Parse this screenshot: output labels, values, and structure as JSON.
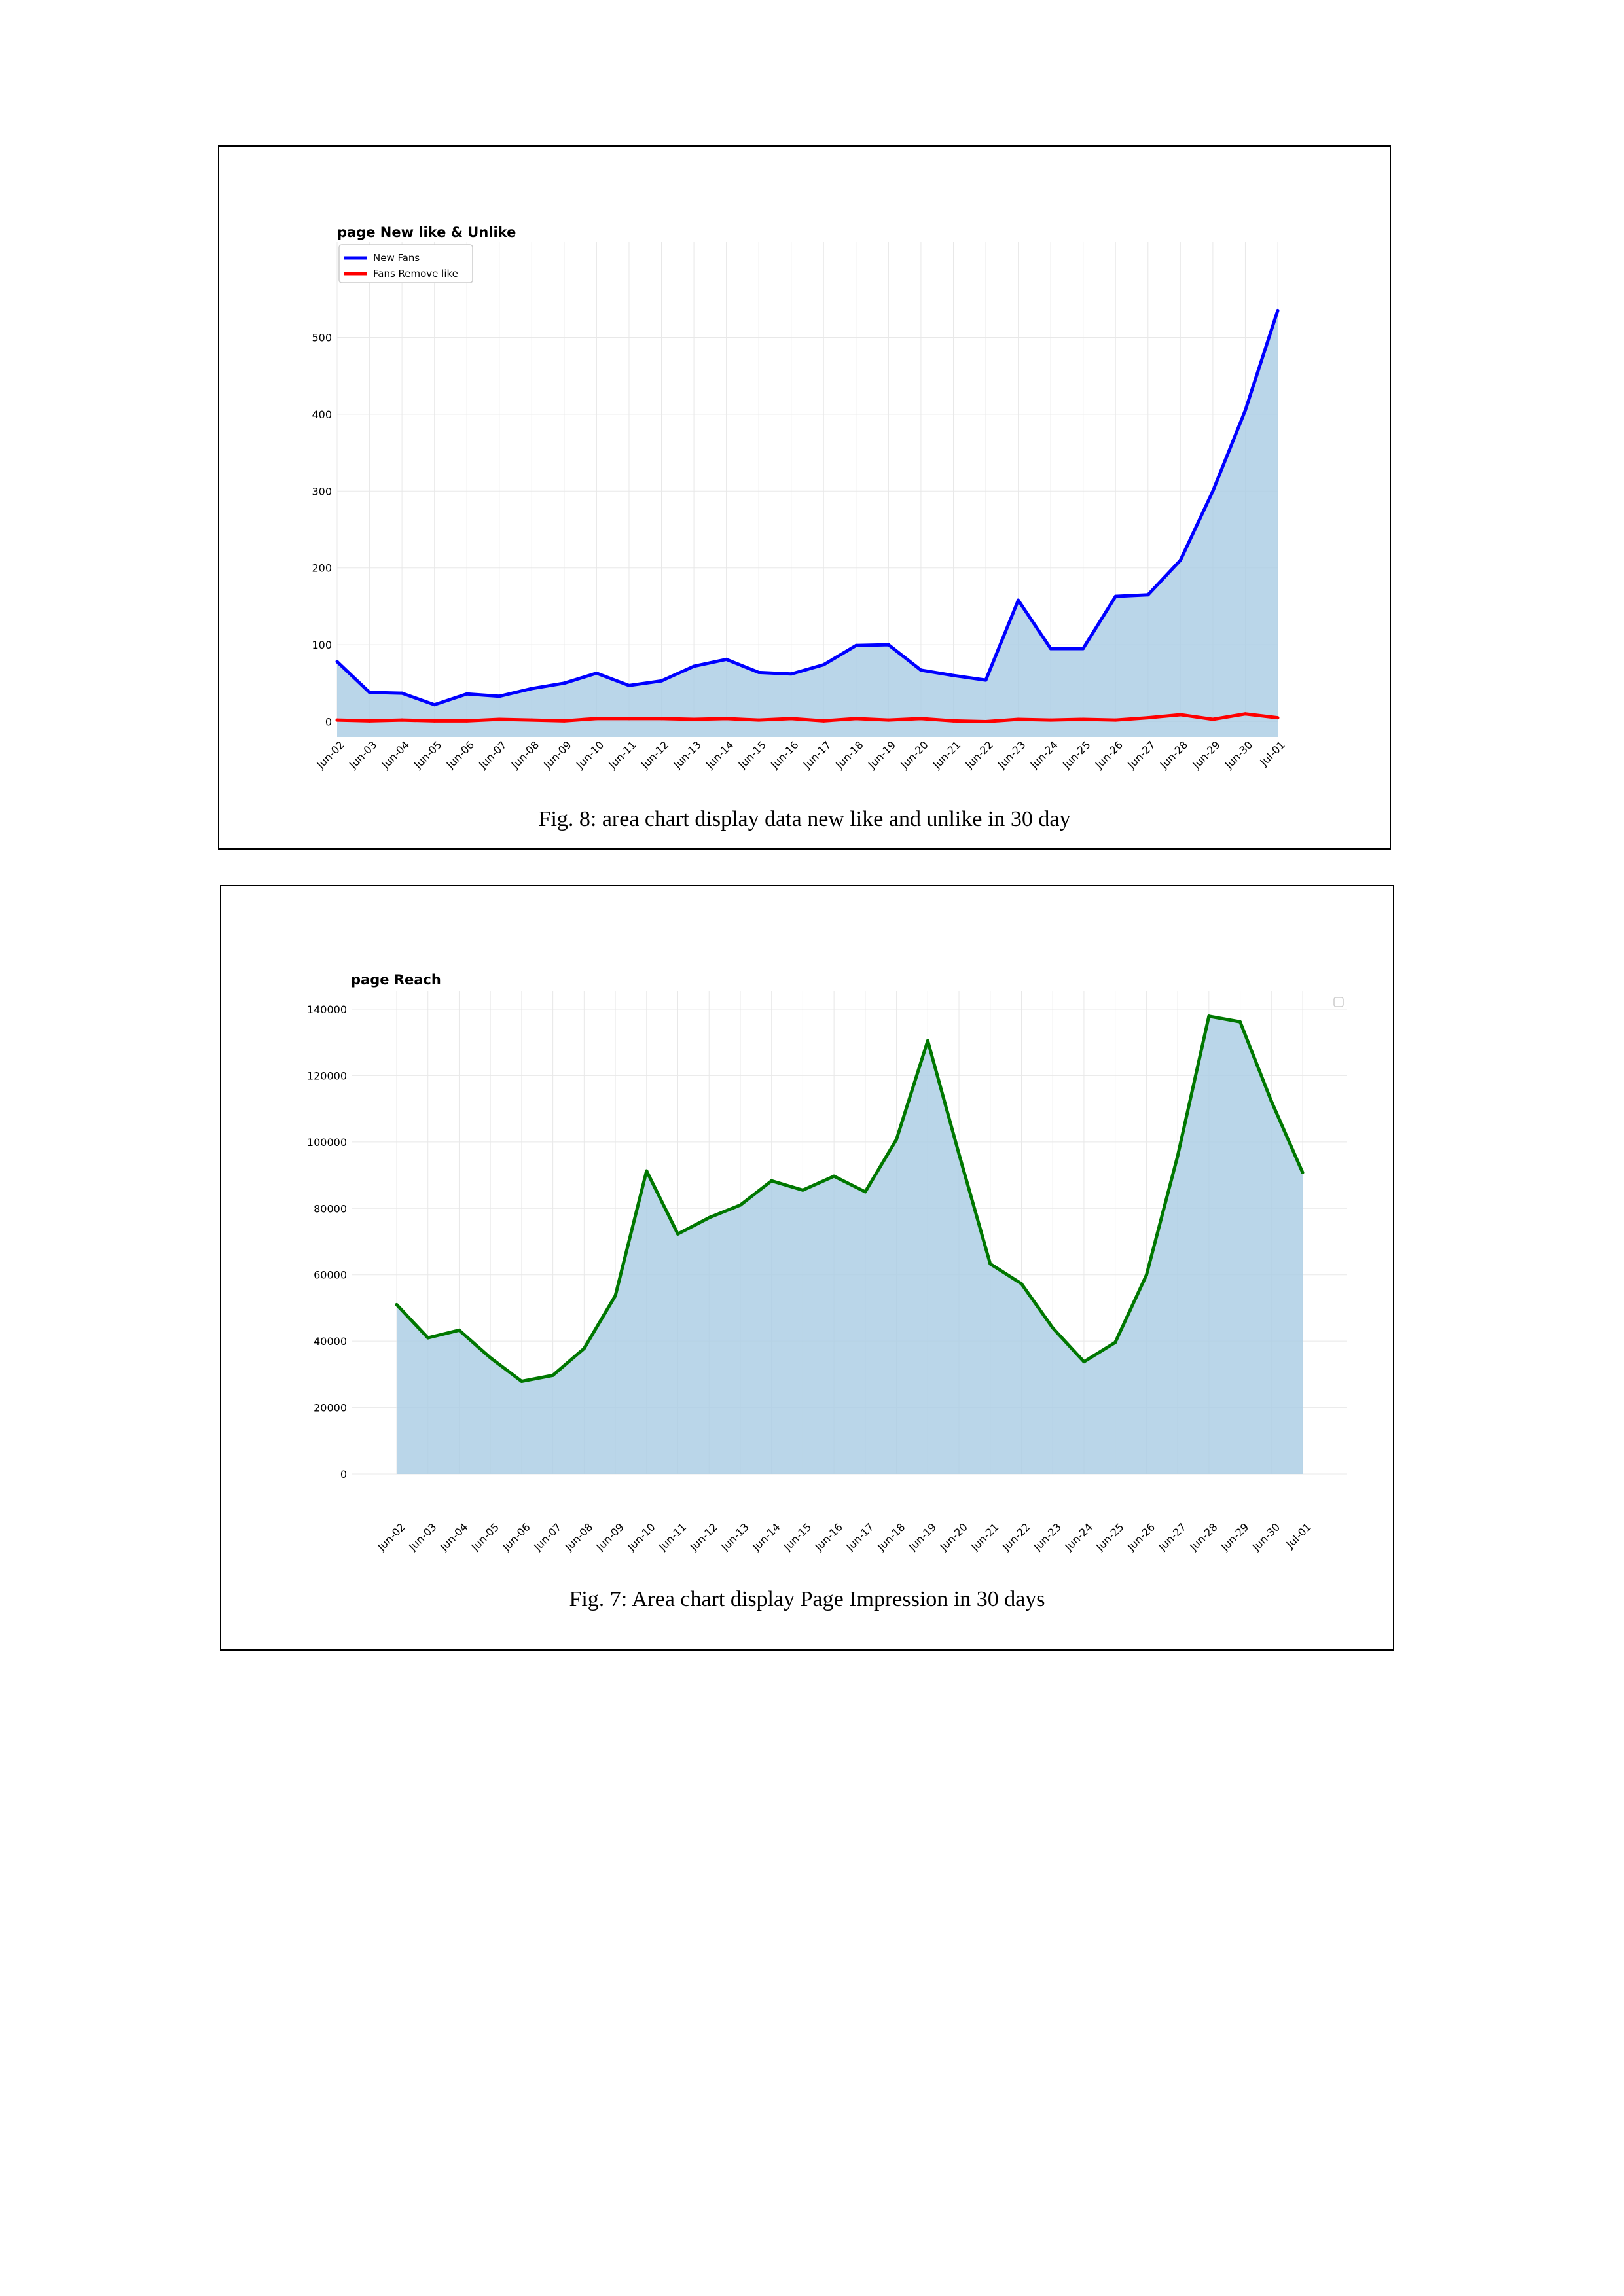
{
  "captions": {
    "fig8": "Fig. 8: area chart display data new like and unlike in 30 day",
    "fig7": "Fig. 7: Area chart display Page Impression in 30 days"
  },
  "colors": {
    "area_fill": "#a9cce3",
    "new_fans": "#0000ff",
    "fans_remove": "#ff0000",
    "reach": "#007700",
    "grid": "#e8e8e8"
  },
  "chart_data": [
    {
      "type": "area",
      "title": "page New like & Unlike",
      "xlabel": "",
      "ylabel": "",
      "x": [
        "Jun-02",
        "Jun-03",
        "Jun-04",
        "Jun-05",
        "Jun-06",
        "Jun-07",
        "Jun-08",
        "Jun-09",
        "Jun-10",
        "Jun-11",
        "Jun-12",
        "Jun-13",
        "Jun-14",
        "Jun-15",
        "Jun-16",
        "Jun-17",
        "Jun-18",
        "Jun-19",
        "Jun-20",
        "Jun-21",
        "Jun-22",
        "Jun-23",
        "Jun-24",
        "Jun-25",
        "Jun-26",
        "Jun-27",
        "Jun-28",
        "Jun-29",
        "Jun-30",
        "Jul-01"
      ],
      "series": [
        {
          "name": "New Fans",
          "color": "#0000ff",
          "values": [
            78,
            38,
            37,
            22,
            36,
            33,
            43,
            50,
            63,
            47,
            53,
            72,
            81,
            64,
            62,
            74,
            99,
            100,
            67,
            60,
            54,
            158,
            95,
            95,
            163,
            165,
            210,
            300,
            405,
            535
          ]
        },
        {
          "name": "Fans Remove like",
          "color": "#ff0000",
          "values": [
            2,
            1,
            2,
            1,
            1,
            3,
            2,
            1,
            4,
            4,
            4,
            3,
            4,
            2,
            4,
            1,
            4,
            2,
            4,
            1,
            0,
            3,
            2,
            3,
            2,
            5,
            9,
            3,
            10,
            5
          ]
        }
      ],
      "ylim": [
        -20,
        560
      ],
      "yticks": [
        0,
        100,
        200,
        300,
        400,
        500
      ],
      "grid": true,
      "legend": "upper-left"
    },
    {
      "type": "area",
      "title": "page Reach",
      "xlabel": "",
      "ylabel": "",
      "x": [
        "Jun-02",
        "Jun-03",
        "Jun-04",
        "Jun-05",
        "Jun-06",
        "Jun-07",
        "Jun-08",
        "Jun-09",
        "Jun-10",
        "Jun-11",
        "Jun-12",
        "Jun-13",
        "Jun-14",
        "Jun-15",
        "Jun-16",
        "Jun-17",
        "Jun-18",
        "Jun-19",
        "Jun-20",
        "Jun-21",
        "Jun-22",
        "Jun-23",
        "Jun-24",
        "Jun-25",
        "Jun-26",
        "Jun-27",
        "Jun-28",
        "Jun-29",
        "Jun-30",
        "Jul-01"
      ],
      "series": [
        {
          "color": "#007700",
          "values": [
            51000,
            41000,
            43300,
            35000,
            27900,
            29700,
            37800,
            53700,
            91300,
            72300,
            77200,
            81000,
            88300,
            85500,
            89700,
            85000,
            100800,
            130500,
            96400,
            63300,
            57300,
            44000,
            33800,
            39600,
            59900,
            95800,
            137900,
            136200,
            112300,
            90800
          ]
        }
      ],
      "ylim": [
        0,
        140000
      ],
      "yticks": [
        0,
        20000,
        40000,
        60000,
        80000,
        100000,
        120000,
        140000
      ],
      "grid": true,
      "legend": "upper-right"
    }
  ]
}
